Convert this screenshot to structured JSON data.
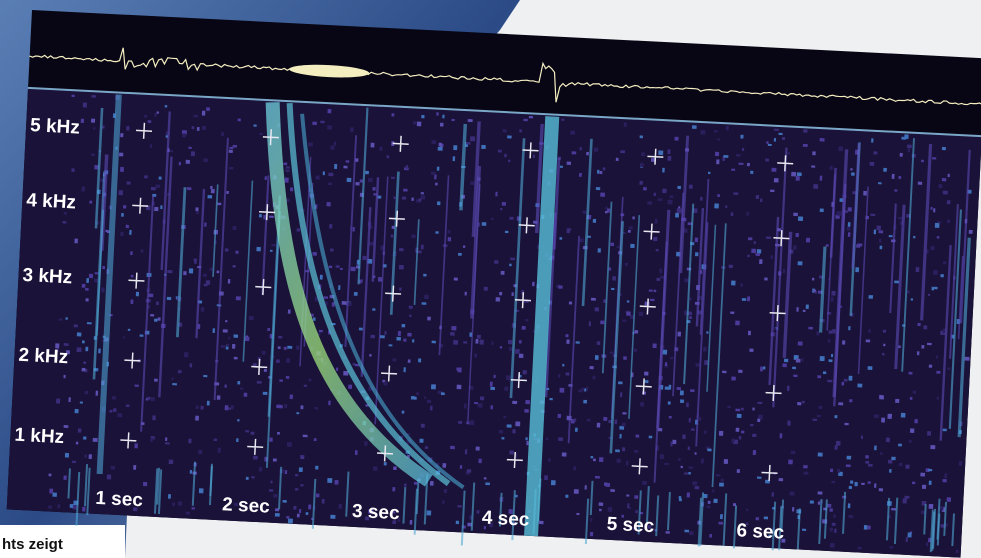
{
  "y_labels": [
    "5 kHz",
    "4 kHz",
    "3 kHz",
    "2 kHz",
    "1 kHz"
  ],
  "x_labels": [
    "1 sec",
    "2 sec",
    "3 sec",
    "4 sec",
    "5 sec",
    "6 sec"
  ],
  "caption": "hts zeigt"
}
